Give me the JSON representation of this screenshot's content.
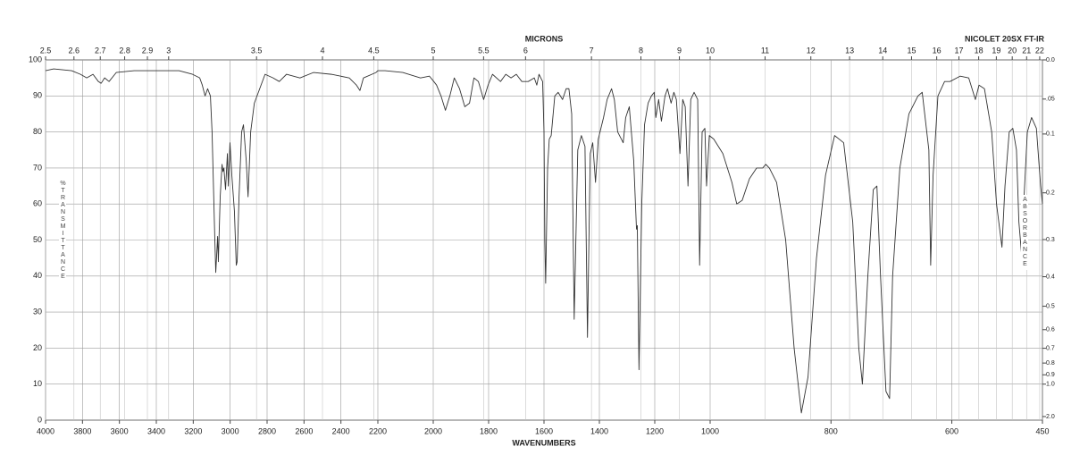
{
  "chart_data": {
    "type": "line",
    "title": "MICRONS",
    "instrument": "NICOLET 20SX FT-IR",
    "x_label": "WAVENUMBERS",
    "y_label": "%TRANSMITTANCE",
    "y2_label": "ABSORBANCE",
    "xlim": [
      4000,
      450
    ],
    "x_scale_breaks": [
      2200,
      1000
    ],
    "xticks": [
      4000,
      3800,
      3600,
      3400,
      3200,
      3000,
      2800,
      2600,
      2400,
      2200,
      2000,
      1800,
      1600,
      1400,
      1200,
      1000,
      800,
      600,
      450
    ],
    "x2ticks": [
      2.5,
      2.6,
      2.7,
      2.8,
      2.9,
      3,
      3.5,
      4,
      4.5,
      5,
      5.5,
      6,
      7,
      8,
      9,
      10,
      11,
      12,
      13,
      14,
      15,
      16,
      17,
      18,
      19,
      20,
      21,
      22
    ],
    "ylim": [
      0,
      100
    ],
    "yticks": [
      0,
      10,
      20,
      30,
      40,
      50,
      60,
      70,
      80,
      90,
      100
    ],
    "y2ticks": [
      {
        "value": 0,
        "label": "0.0"
      },
      {
        "value": 0.05,
        "label": ".05"
      },
      0.1,
      0.2,
      0.3,
      0.4,
      0.5,
      0.6,
      0.7,
      0.8,
      0.9,
      {
        "value": 1,
        "label": "1.0"
      },
      {
        "value": 2,
        "label": "2.0"
      }
    ],
    "grid": true,
    "color": "#333333",
    "x": [
      4000,
      3956,
      3859,
      3811,
      3777,
      3743,
      3714,
      3699,
      3680,
      3656,
      3617,
      3520,
      3374,
      3277,
      3204,
      3165,
      3151,
      3136,
      3122,
      3107,
      3098,
      3083,
      3078,
      3068,
      3064,
      3054,
      3044,
      3039,
      3034,
      3025,
      3015,
      3010,
      3001,
      2991,
      2977,
      2967,
      2962,
      2952,
      2938,
      2928,
      2913,
      2903,
      2889,
      2869,
      2840,
      2811,
      2768,
      2734,
      2695,
      2622,
      2549,
      2452,
      2355,
      2316,
      2297,
      2278,
      2210,
      2200,
      2174,
      2110,
      2046,
      2014,
      1998,
      1988,
      1972,
      1956,
      1940,
      1924,
      1905,
      1886,
      1869,
      1853,
      1837,
      1818,
      1802,
      1786,
      1757,
      1738,
      1719,
      1700,
      1680,
      1657,
      1635,
      1626,
      1618,
      1605,
      1600,
      1597,
      1594,
      1587,
      1581,
      1574,
      1561,
      1549,
      1533,
      1520,
      1510,
      1500,
      1491,
      1478,
      1465,
      1452,
      1443,
      1433,
      1424,
      1414,
      1404,
      1385,
      1372,
      1356,
      1346,
      1334,
      1314,
      1305,
      1292,
      1276,
      1266,
      1263,
      1257,
      1247,
      1237,
      1224,
      1212,
      1202,
      1196,
      1186,
      1176,
      1163,
      1154,
      1141,
      1131,
      1122,
      1109,
      1099,
      1090,
      1080,
      1070,
      1058,
      1045,
      1038,
      1029,
      1019,
      1013,
      1003,
      994,
      979,
      964,
      956,
      947,
      935,
      923,
      913,
      908,
      902,
      890,
      875,
      861,
      849,
      838,
      824,
      809,
      794,
      779,
      764,
      754,
      748,
      739,
      730,
      724,
      718,
      709,
      703,
      698,
      686,
      671,
      656,
      649,
      638,
      635,
      631,
      623,
      612,
      603,
      586,
      572,
      561,
      555,
      546,
      534,
      526,
      517,
      512,
      505,
      499,
      493,
      489,
      484,
      481,
      475,
      468,
      460,
      453,
      450
    ],
    "values": [
      97,
      97.5,
      97,
      96,
      95,
      96,
      94,
      93.5,
      95,
      94,
      96.5,
      97,
      97,
      97,
      96,
      95,
      93,
      90,
      92,
      90,
      80,
      50,
      41,
      51,
      44,
      62,
      71,
      69,
      70,
      64,
      74,
      65,
      77,
      68,
      58,
      43,
      44,
      62,
      80,
      82,
      72,
      62,
      80,
      88,
      92,
      96,
      95,
      94,
      96,
      95,
      96.5,
      96,
      95,
      93,
      91.5,
      95,
      96.5,
      97,
      97,
      96.5,
      95,
      95.5,
      94,
      93,
      90,
      86,
      90,
      95,
      92,
      87,
      88,
      95,
      94,
      89,
      93,
      96,
      94,
      96,
      95,
      96,
      94,
      94,
      95,
      93,
      96,
      94,
      80,
      50,
      38,
      70,
      78,
      79,
      90,
      91,
      89,
      92,
      92,
      85,
      28,
      75,
      79,
      76,
      23,
      74,
      77,
      66,
      78,
      84,
      89,
      92,
      89,
      80,
      77,
      84,
      87,
      72,
      53,
      54,
      14,
      60,
      82,
      88,
      90,
      91,
      84,
      89,
      83,
      90,
      92,
      88,
      91,
      89,
      74,
      89,
      87,
      65,
      89,
      91,
      89,
      43,
      80,
      81,
      65,
      79,
      78,
      74,
      66,
      60,
      61,
      67,
      70,
      70,
      71,
      70,
      66,
      50,
      20,
      2,
      12,
      45,
      68,
      79,
      77,
      55,
      20,
      10,
      40,
      64,
      65,
      40,
      8,
      6,
      40,
      70,
      85,
      90,
      91,
      75,
      43,
      68,
      90,
      94,
      94,
      95.5,
      95,
      89,
      93,
      92,
      80,
      60,
      48,
      65,
      80,
      81,
      75,
      55,
      45,
      60,
      80,
      84,
      81,
      65,
      60
    ]
  }
}
